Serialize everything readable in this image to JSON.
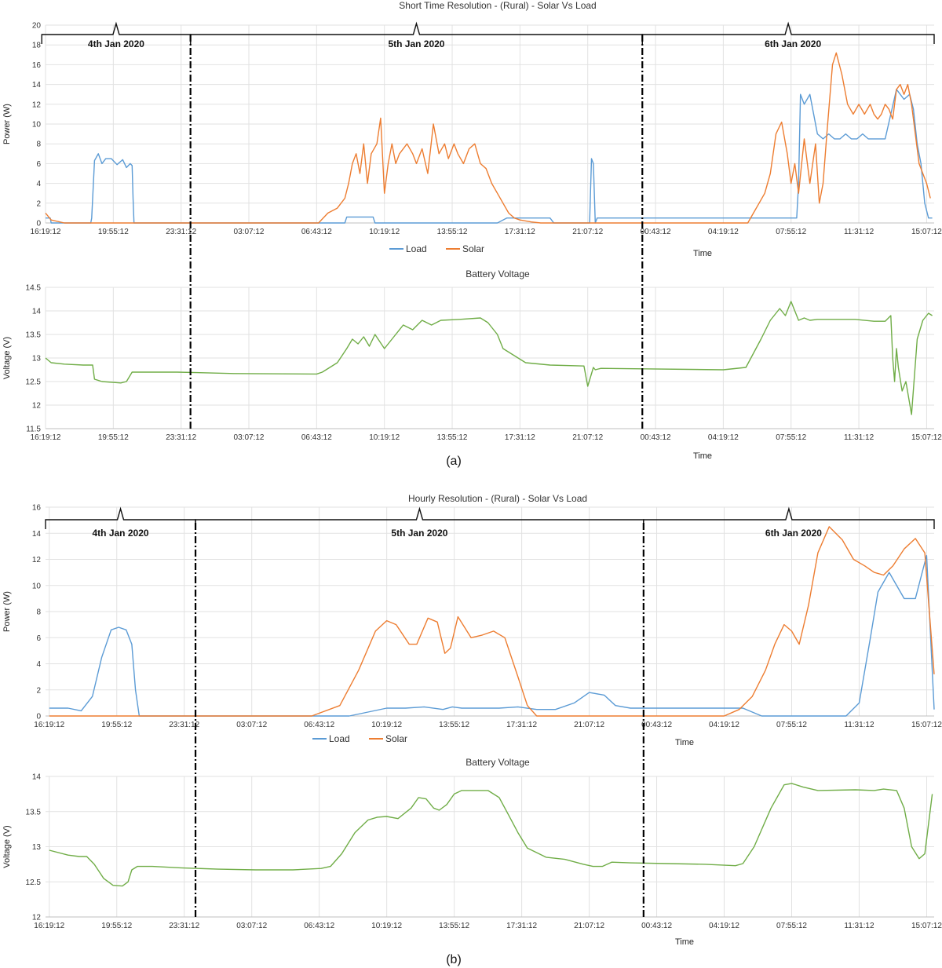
{
  "colors": {
    "load": "#5b9bd5",
    "solar": "#ed7d31",
    "voltage": "#70ad47"
  },
  "time_ticks": [
    "16:19:12",
    "19:55:12",
    "23:31:12",
    "03:07:12",
    "06:43:12",
    "10:19:12",
    "13:55:12",
    "17:31:12",
    "21:07:12",
    "00:43:12",
    "04:19:12",
    "07:55:12",
    "11:31:12",
    "15:07:12"
  ],
  "captions": {
    "a": "(a)",
    "b": "(b)"
  },
  "chart_data": [
    {
      "id": "a_power",
      "type": "line",
      "title": "Short Time Resolution - (Rural) - Solar Vs Load",
      "xlabel": "Time",
      "ylabel": "Power (W)",
      "ylim": [
        0,
        20
      ],
      "yticks": [
        0,
        2,
        4,
        6,
        8,
        10,
        12,
        14,
        16,
        18,
        20
      ],
      "xlim": [
        0,
        47.2
      ],
      "x_ticks_hours": [
        0,
        3.6,
        7.2,
        10.8,
        14.4,
        18,
        21.6,
        25.2,
        28.8,
        32.4,
        36,
        39.6,
        43.2,
        46.8
      ],
      "legend": "bottom",
      "day_labels": [
        {
          "label": "4th Jan 2020",
          "start": -0.2,
          "end": 7.7
        },
        {
          "label": "5th Jan 2020",
          "start": 7.7,
          "end": 31.7
        },
        {
          "label": "6th Jan 2020",
          "start": 31.7,
          "end": 47.2
        }
      ],
      "dividers": [
        7.7,
        31.7
      ],
      "series": [
        {
          "name": "Load",
          "color_key": "load",
          "x": [
            0,
            0.25,
            0.3,
            2.4,
            2.45,
            2.6,
            2.8,
            3.0,
            3.2,
            3.5,
            3.8,
            4.1,
            4.3,
            4.5,
            4.6,
            4.65,
            4.7,
            4.9,
            5.5,
            6,
            10,
            15.9,
            16,
            17.4,
            17.5,
            24,
            24.5,
            26.8,
            27,
            28.9,
            29,
            29.1,
            29.2,
            29.3,
            30,
            32,
            36,
            38,
            39,
            39.9,
            40,
            40.1,
            40.3,
            40.6,
            40.8,
            41,
            41.3,
            41.6,
            41.9,
            42.2,
            42.5,
            42.8,
            43.1,
            43.4,
            43.7,
            44.2,
            44.6,
            45.2,
            45.4,
            45.6,
            45.9,
            46.1,
            46.3,
            46.5,
            46.7,
            46.9,
            47.1
          ],
          "y": [
            0.5,
            0.5,
            0,
            0,
            0.5,
            6.3,
            7.0,
            6.0,
            6.5,
            6.5,
            5.9,
            6.4,
            5.6,
            6.0,
            5.8,
            2.5,
            0,
            0,
            0,
            0,
            0,
            0,
            0.6,
            0.6,
            0,
            0,
            0.5,
            0.5,
            0,
            0,
            6.5,
            6.0,
            0,
            0.5,
            0.5,
            0.5,
            0.5,
            0.5,
            0.5,
            0.5,
            4.0,
            13.0,
            12.0,
            13.0,
            11.0,
            9.0,
            8.5,
            9.0,
            8.5,
            8.5,
            9.0,
            8.5,
            8.5,
            9.0,
            8.5,
            8.5,
            8.5,
            13.5,
            13.0,
            12.5,
            13.0,
            11.5,
            8.0,
            6.0,
            2.0,
            0.5,
            0.5
          ]
        },
        {
          "name": "Solar",
          "color_key": "solar",
          "x": [
            0,
            0.3,
            1,
            14.5,
            15.0,
            15.5,
            15.9,
            16.1,
            16.3,
            16.5,
            16.7,
            16.9,
            17.1,
            17.3,
            17.6,
            17.8,
            18,
            18.2,
            18.4,
            18.6,
            18.8,
            19.2,
            19.5,
            19.7,
            20,
            20.3,
            20.6,
            20.9,
            21.2,
            21.4,
            21.7,
            21.9,
            22.2,
            22.5,
            22.8,
            23.1,
            23.4,
            23.7,
            24,
            24.3,
            24.6,
            24.9,
            25.2,
            25.8,
            26.3,
            27,
            37.3,
            37.6,
            37.9,
            38.2,
            38.5,
            38.8,
            39.1,
            39.4,
            39.6,
            39.8,
            40.0,
            40.3,
            40.6,
            40.9,
            41.1,
            41.3,
            41.5,
            41.8,
            42,
            42.3,
            42.6,
            42.9,
            43.2,
            43.5,
            43.8,
            44,
            44.2,
            44.4,
            44.6,
            44.8,
            45.0,
            45.2,
            45.4,
            45.6,
            45.8,
            46.0,
            46.2,
            46.4,
            46.6,
            46.8,
            47.0
          ],
          "y": [
            1.0,
            0.3,
            0,
            0,
            1.0,
            1.5,
            2.5,
            4.0,
            6.0,
            7.0,
            5.0,
            8.0,
            4.0,
            7.0,
            8.0,
            10.6,
            3.0,
            6.0,
            8.0,
            6.0,
            7.0,
            8.0,
            7.0,
            6.0,
            7.5,
            5.0,
            10.0,
            7.0,
            8.0,
            6.5,
            8.0,
            7.0,
            6.0,
            7.5,
            8.0,
            6.0,
            5.5,
            4.0,
            3.0,
            2.0,
            1.0,
            0.5,
            0.3,
            0.1,
            0,
            0,
            0,
            1.0,
            2.0,
            3.0,
            5.0,
            9.0,
            10.2,
            7.0,
            4.0,
            6.0,
            3.0,
            8.5,
            4.0,
            8.0,
            2.0,
            4.0,
            9.0,
            16.0,
            17.2,
            15.0,
            12.0,
            11.0,
            12.0,
            11.0,
            12.0,
            11.0,
            10.5,
            11.0,
            12.0,
            11.5,
            10.5,
            13.5,
            14.0,
            13.0,
            14.0,
            12.0,
            9.0,
            6.0,
            5.0,
            4.0,
            2.5
          ]
        }
      ]
    },
    {
      "id": "a_voltage",
      "type": "line",
      "title": "Battery Voltage",
      "xlabel": "Time",
      "ylabel": "Voltage (V)",
      "ylim": [
        11.5,
        14.5
      ],
      "yticks": [
        11.5,
        12,
        12.5,
        13,
        13.5,
        14,
        14.5
      ],
      "xlim": [
        0,
        47.2
      ],
      "x_ticks_hours": [
        0,
        3.6,
        7.2,
        10.8,
        14.4,
        18,
        21.6,
        25.2,
        28.8,
        32.4,
        36,
        39.6,
        43.2,
        46.8
      ],
      "dividers": [
        7.7,
        31.7
      ],
      "series": [
        {
          "name": "",
          "color_key": "voltage",
          "x": [
            0,
            0.3,
            1,
            2,
            2.5,
            2.6,
            3,
            4,
            4.3,
            4.6,
            5,
            7,
            10,
            14.4,
            14.7,
            15.5,
            16,
            16.3,
            16.6,
            16.9,
            17.2,
            17.5,
            18,
            18.5,
            19,
            19.5,
            20,
            20.5,
            21,
            22,
            23.1,
            23.5,
            24,
            24.3,
            25.5,
            26.8,
            28.6,
            28.8,
            29.1,
            29.2,
            29.5,
            31.7,
            36,
            37.2,
            38,
            38.5,
            39,
            39.3,
            39.6,
            40,
            40.3,
            40.6,
            41,
            42,
            43,
            44,
            44.6,
            44.9,
            45,
            45.1,
            45.2,
            45.3,
            45.5,
            45.7,
            46,
            46.3,
            46.6,
            46.9,
            47.1
          ],
          "y": [
            13.0,
            12.9,
            12.87,
            12.85,
            12.85,
            12.55,
            12.5,
            12.47,
            12.5,
            12.7,
            12.7,
            12.7,
            12.67,
            12.66,
            12.7,
            12.9,
            13.2,
            13.4,
            13.3,
            13.45,
            13.25,
            13.5,
            13.2,
            13.45,
            13.7,
            13.6,
            13.8,
            13.7,
            13.8,
            13.82,
            13.85,
            13.75,
            13.5,
            13.2,
            12.9,
            12.85,
            12.83,
            12.4,
            12.8,
            12.75,
            12.78,
            12.77,
            12.75,
            12.8,
            13.4,
            13.8,
            14.05,
            13.9,
            14.2,
            13.8,
            13.85,
            13.8,
            13.82,
            13.82,
            13.82,
            13.78,
            13.78,
            13.9,
            13.0,
            12.5,
            13.2,
            12.8,
            12.3,
            12.5,
            11.8,
            13.4,
            13.8,
            13.95,
            13.9
          ]
        }
      ]
    },
    {
      "id": "b_power",
      "type": "line",
      "title": "Hourly Resolution - (Rural) - Solar Vs Load",
      "xlabel": "Time",
      "ylabel": "Power (W)",
      "ylim": [
        0,
        16
      ],
      "yticks": [
        0,
        2,
        4,
        6,
        8,
        10,
        12,
        14,
        16
      ],
      "xlim": [
        -0.2,
        47.2
      ],
      "x_ticks_hours": [
        0,
        3.6,
        7.2,
        10.8,
        14.4,
        18,
        21.6,
        25.2,
        28.8,
        32.4,
        36,
        39.6,
        43.2,
        46.8
      ],
      "legend": "bottom",
      "day_labels": [
        {
          "label": "4th Jan 2020",
          "start": -0.2,
          "end": 7.8
        },
        {
          "label": "5th Jan 2020",
          "start": 7.8,
          "end": 31.7
        },
        {
          "label": "6th Jan 2020",
          "start": 31.7,
          "end": 47.2
        }
      ],
      "dividers": [
        7.8,
        31.7
      ],
      "series": [
        {
          "name": "Load",
          "color_key": "load",
          "x": [
            0,
            1,
            1.7,
            2.3,
            2.8,
            3.3,
            3.7,
            4.1,
            4.4,
            4.6,
            4.8,
            5.5,
            16,
            17,
            18,
            19,
            20,
            21,
            21.5,
            22,
            23,
            24,
            25,
            26,
            27,
            28,
            28.8,
            29.6,
            30.2,
            31,
            31.5,
            32,
            34,
            36,
            37,
            37.5,
            38,
            42.5,
            43.2,
            43.8,
            44.2,
            44.8,
            45.6,
            46.2,
            46.8,
            47.2
          ],
          "y": [
            0.6,
            0.6,
            0.4,
            1.5,
            4.5,
            6.6,
            6.8,
            6.6,
            5.5,
            2.0,
            0,
            0,
            0,
            0.3,
            0.6,
            0.6,
            0.7,
            0.5,
            0.7,
            0.6,
            0.6,
            0.6,
            0.7,
            0.5,
            0.5,
            1.0,
            1.8,
            1.6,
            0.8,
            0.6,
            0.6,
            0.6,
            0.6,
            0.6,
            0.6,
            0.3,
            0,
            0,
            1.0,
            6.0,
            9.5,
            11.0,
            9.0,
            9.0,
            12.3,
            0.5
          ]
        },
        {
          "name": "Solar",
          "color_key": "solar",
          "x": [
            0,
            14,
            15.5,
            16.5,
            17.4,
            18,
            18.5,
            19.2,
            19.6,
            20.2,
            20.7,
            21.1,
            21.4,
            21.8,
            22.5,
            23.1,
            23.7,
            24.3,
            25,
            25.5,
            26,
            36,
            36.8,
            37.5,
            38.2,
            38.7,
            39.2,
            39.6,
            40,
            40.5,
            41,
            41.6,
            42.3,
            42.9,
            43.5,
            44,
            44.5,
            45,
            45.6,
            46.2,
            46.7,
            47.2
          ],
          "y": [
            0,
            0,
            0.8,
            3.5,
            6.5,
            7.3,
            7.0,
            5.5,
            5.5,
            7.5,
            7.2,
            4.8,
            5.2,
            7.6,
            6.0,
            6.2,
            6.5,
            6.0,
            3.0,
            0.8,
            0,
            0,
            0.5,
            1.5,
            3.5,
            5.5,
            7.0,
            6.5,
            5.5,
            8.5,
            12.5,
            14.5,
            13.5,
            12.0,
            11.5,
            11.0,
            10.8,
            11.5,
            12.8,
            13.6,
            12.5,
            3.2
          ]
        }
      ]
    },
    {
      "id": "b_voltage",
      "type": "line",
      "title": "Battery Voltage",
      "xlabel": "Time",
      "ylabel": "Voltage (V)",
      "ylim": [
        12,
        14
      ],
      "yticks": [
        12,
        12.5,
        13,
        13.5,
        14
      ],
      "xlim": [
        -0.2,
        47.2
      ],
      "x_ticks_hours": [
        0,
        3.6,
        7.2,
        10.8,
        14.4,
        18,
        21.6,
        25.2,
        28.8,
        32.4,
        36,
        39.6,
        43.2,
        46.8
      ],
      "dividers": [
        7.8,
        31.7
      ],
      "series": [
        {
          "name": "",
          "color_key": "voltage",
          "x": [
            0,
            1,
            1.6,
            2.0,
            2.4,
            2.9,
            3.4,
            3.9,
            4.2,
            4.4,
            4.7,
            5.5,
            7,
            9,
            11,
            13,
            14.5,
            15,
            15.6,
            16.3,
            17,
            17.5,
            18,
            18.6,
            19.3,
            19.7,
            20.1,
            20.5,
            20.8,
            21.2,
            21.6,
            22,
            22.7,
            23.4,
            24,
            24.5,
            25,
            25.5,
            26.5,
            27.5,
            28.5,
            29,
            29.5,
            30,
            31,
            33,
            35,
            36.6,
            37,
            37.6,
            38.5,
            39.2,
            39.6,
            40.2,
            41,
            43,
            44,
            44.5,
            45.2,
            45.6,
            46,
            46.4,
            46.7,
            47.1
          ],
          "y": [
            12.95,
            12.88,
            12.86,
            12.86,
            12.75,
            12.55,
            12.45,
            12.44,
            12.5,
            12.67,
            12.72,
            12.72,
            12.7,
            12.68,
            12.67,
            12.67,
            12.69,
            12.72,
            12.9,
            13.2,
            13.38,
            13.42,
            13.43,
            13.4,
            13.55,
            13.7,
            13.68,
            13.55,
            13.52,
            13.6,
            13.75,
            13.8,
            13.8,
            13.8,
            13.7,
            13.45,
            13.2,
            12.98,
            12.85,
            12.82,
            12.75,
            12.72,
            12.72,
            12.78,
            12.77,
            12.76,
            12.75,
            12.73,
            12.76,
            13.0,
            13.55,
            13.88,
            13.9,
            13.85,
            13.8,
            13.81,
            13.8,
            13.82,
            13.8,
            13.55,
            13.0,
            12.83,
            12.9,
            13.75
          ]
        }
      ]
    }
  ]
}
